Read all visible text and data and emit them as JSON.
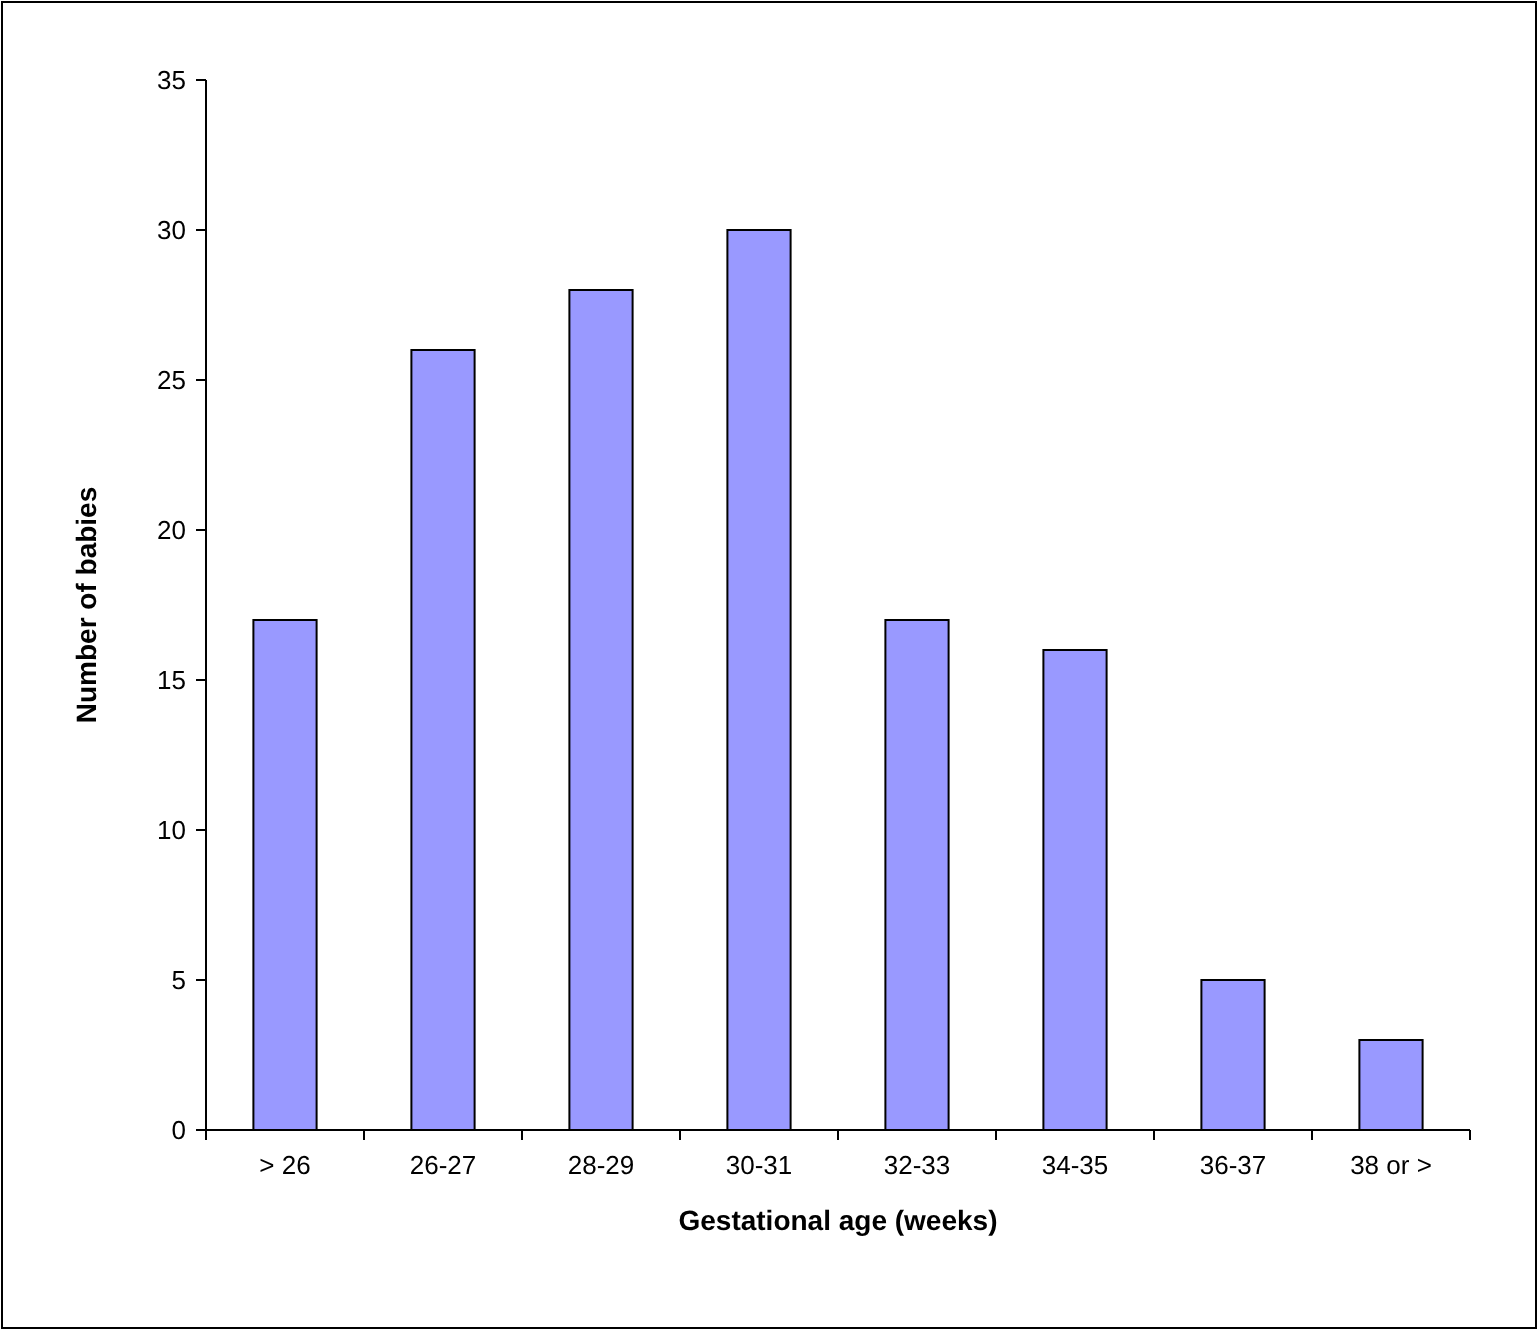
{
  "chart_data": {
    "type": "bar",
    "xlabel": "Gestational age (weeks)",
    "ylabel": "Number of babies",
    "categories": [
      "> 26",
      "26-27",
      "28-29",
      "30-31",
      "32-33",
      "34-35",
      "36-37",
      "38 or >"
    ],
    "values": [
      17,
      26,
      28,
      30,
      17,
      16,
      5,
      3
    ],
    "color": "#9999ff",
    "ylim": [
      0,
      35
    ],
    "yticks": [
      0,
      5,
      10,
      15,
      20,
      25,
      30,
      35
    ],
    "grid": false
  }
}
